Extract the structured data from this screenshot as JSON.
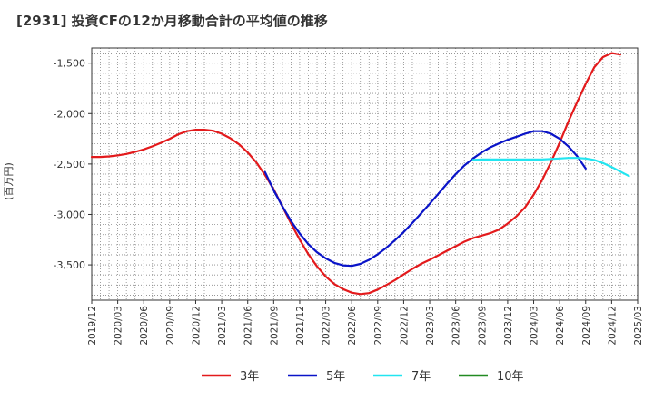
{
  "chart_data": {
    "type": "line",
    "title": "[2931]  投資CFの12か月移動合計の平均値の推移",
    "ylabel": "(百万円)",
    "xlabel": "",
    "ylim": [
      -3850,
      -1350
    ],
    "yticks": [
      -1500,
      -2000,
      -2500,
      -3000,
      -3500
    ],
    "ytick_labels": [
      "-1,500",
      "-2,000",
      "-2,500",
      "-3,000",
      "-3,500"
    ],
    "xticks": [
      "2019/12",
      "2020/03",
      "2020/06",
      "2020/09",
      "2020/12",
      "2021/03",
      "2021/06",
      "2021/09",
      "2021/12",
      "2022/03",
      "2022/06",
      "2022/09",
      "2022/12",
      "2023/03",
      "2023/06",
      "2023/09",
      "2023/12",
      "2024/03",
      "2024/06",
      "2024/09",
      "2024/12",
      "2025/03"
    ],
    "grid": true,
    "legend_position": "bottom",
    "series": [
      {
        "name": "3年",
        "color": "#e31a1c",
        "start": "2019/12",
        "values": [
          -2430,
          -2430,
          -2425,
          -2415,
          -2400,
          -2380,
          -2355,
          -2325,
          -2290,
          -2250,
          -2205,
          -2175,
          -2160,
          -2160,
          -2170,
          -2200,
          -2245,
          -2305,
          -2385,
          -2485,
          -2610,
          -2750,
          -2920,
          -3090,
          -3250,
          -3395,
          -3515,
          -3615,
          -3690,
          -3740,
          -3775,
          -3790,
          -3780,
          -3745,
          -3700,
          -3650,
          -3595,
          -3540,
          -3490,
          -3450,
          -3405,
          -3360,
          -3315,
          -3270,
          -3235,
          -3210,
          -3185,
          -3150,
          -3090,
          -3020,
          -2930,
          -2805,
          -2655,
          -2480,
          -2290,
          -2080,
          -1890,
          -1705,
          -1540,
          -1440,
          -1400,
          -1415
        ]
      },
      {
        "name": "5年",
        "color": "#0a14c8",
        "start": "2021/08",
        "values": [
          -2580,
          -2760,
          -2920,
          -3065,
          -3190,
          -3295,
          -3375,
          -3435,
          -3480,
          -3505,
          -3510,
          -3490,
          -3450,
          -3395,
          -3330,
          -3255,
          -3175,
          -3085,
          -2990,
          -2895,
          -2795,
          -2695,
          -2600,
          -2515,
          -2445,
          -2385,
          -2335,
          -2295,
          -2260,
          -2230,
          -2200,
          -2175,
          -2175,
          -2200,
          -2250,
          -2325,
          -2420,
          -2545
        ]
      },
      {
        "name": "7年",
        "color": "#22e5f0",
        "start": "2023/08",
        "values": [
          -2460,
          -2455,
          -2455,
          -2455,
          -2455,
          -2455,
          -2455,
          -2455,
          -2455,
          -2450,
          -2445,
          -2440,
          -2440,
          -2445,
          -2460,
          -2490,
          -2530,
          -2575,
          -2620
        ]
      },
      {
        "name": "10年",
        "color": "#228b22",
        "start": "",
        "values": []
      }
    ]
  }
}
